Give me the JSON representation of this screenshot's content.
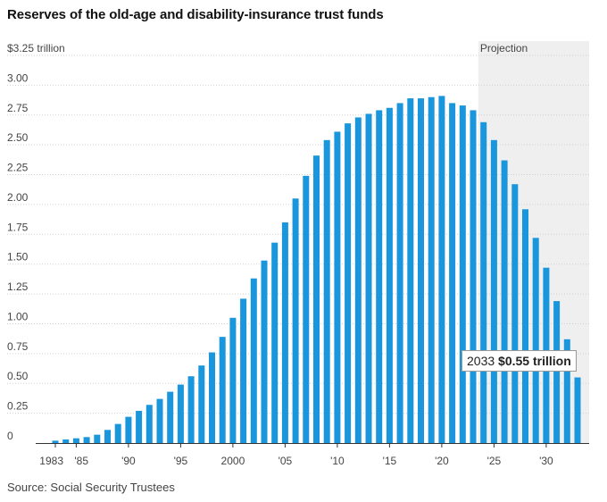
{
  "title": "Reserves of the old-age and disability-insurance trust funds",
  "source": "Source: Social Security Trustees",
  "callout": {
    "year": "2033",
    "value": "$0.55 trillion"
  },
  "colors": {
    "bar": "#1a96dc",
    "projection_shade": "#efefef",
    "grid": "#d0d0d0",
    "axis": "#333333"
  },
  "chart_data": {
    "type": "bar",
    "title": "Reserves of the old-age and disability-insurance trust funds",
    "ylabel": "$ trillion",
    "ylim": [
      0,
      3.25
    ],
    "y_ticks": [
      0,
      0.25,
      0.5,
      0.75,
      1.0,
      1.25,
      1.5,
      1.75,
      2.0,
      2.25,
      2.5,
      2.75,
      3.0,
      3.25
    ],
    "y_tick_labels": [
      "0",
      "0.25",
      "0.50",
      "0.75",
      "1.00",
      "1.25",
      "1.50",
      "1.75",
      "2.00",
      "2.25",
      "2.50",
      "2.75",
      "3.00",
      "$3.25 trillion"
    ],
    "x_ticks": [
      1983,
      1985,
      1990,
      1995,
      2000,
      2005,
      2010,
      2015,
      2020,
      2025,
      2030
    ],
    "x_tick_labels": [
      "1983",
      "'85",
      "'90",
      "'95",
      "2000",
      "'05",
      "'10",
      "'15",
      "'20",
      "'25",
      "'30"
    ],
    "projection_label": "Projection",
    "projection_start": 2024,
    "categories": [
      1983,
      1984,
      1985,
      1986,
      1987,
      1988,
      1989,
      1990,
      1991,
      1992,
      1993,
      1994,
      1995,
      1996,
      1997,
      1998,
      1999,
      2000,
      2001,
      2002,
      2003,
      2004,
      2005,
      2006,
      2007,
      2008,
      2009,
      2010,
      2011,
      2012,
      2013,
      2014,
      2015,
      2016,
      2017,
      2018,
      2019,
      2020,
      2021,
      2022,
      2023,
      2024,
      2025,
      2026,
      2027,
      2028,
      2029,
      2030,
      2031,
      2032,
      2033
    ],
    "values": [
      0.02,
      0.03,
      0.04,
      0.05,
      0.07,
      0.11,
      0.16,
      0.22,
      0.27,
      0.32,
      0.37,
      0.43,
      0.49,
      0.56,
      0.65,
      0.76,
      0.89,
      1.05,
      1.21,
      1.38,
      1.53,
      1.68,
      1.85,
      2.05,
      2.24,
      2.41,
      2.54,
      2.61,
      2.68,
      2.73,
      2.76,
      2.79,
      2.81,
      2.85,
      2.89,
      2.89,
      2.9,
      2.91,
      2.85,
      2.83,
      2.79,
      2.69,
      2.54,
      2.37,
      2.17,
      1.96,
      1.72,
      1.47,
      1.19,
      0.87,
      0.55
    ]
  }
}
